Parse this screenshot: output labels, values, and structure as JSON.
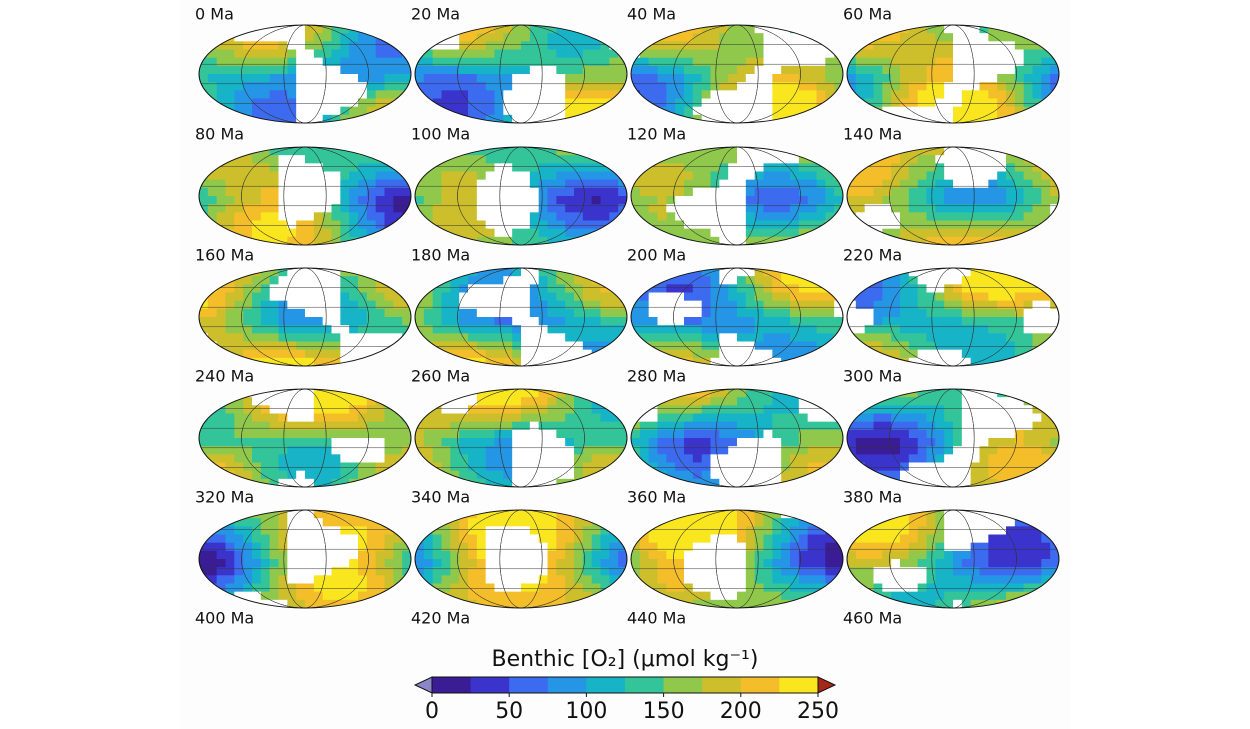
{
  "panel_labels": [
    "0 Ma",
    "20 Ma",
    "40 Ma",
    "60 Ma",
    "80 Ma",
    "100 Ma",
    "120 Ma",
    "140 Ma",
    "160 Ma",
    "180 Ma",
    "200 Ma",
    "220 Ma",
    "240 Ma",
    "260 Ma",
    "280 Ma",
    "300 Ma",
    "320 Ma",
    "340 Ma",
    "360 Ma",
    "380 Ma",
    "400 Ma",
    "420 Ma",
    "440 Ma",
    "460 Ma"
  ],
  "colorbar": {
    "label": "Benthic [O₂] (μmol kg⁻¹)",
    "lim": [
      0,
      250
    ],
    "ticks": [
      0,
      50,
      100,
      150,
      200,
      250
    ],
    "colors": [
      "#3a1c94",
      "#3b34cc",
      "#3c6bef",
      "#2596e6",
      "#17b4c8",
      "#33c599",
      "#8fc84b",
      "#cdbf2c",
      "#f3be29",
      "#f9e61e"
    ],
    "extend": "both",
    "under_color": "#8a86c8",
    "over_color": "#a4271a"
  }
}
